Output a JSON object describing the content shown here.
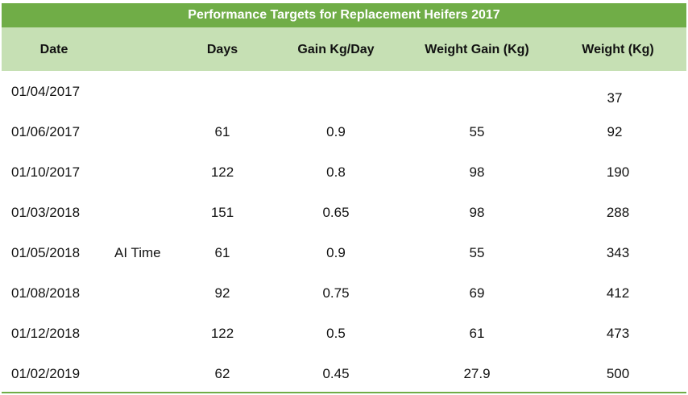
{
  "table": {
    "title": "Performance Targets for Replacement Heifers 2017",
    "headers": {
      "date": "Date",
      "days": "Days",
      "gain": "Gain Kg/Day",
      "weight_gain": "Weight Gain (Kg)",
      "weight": "Weight (Kg)"
    },
    "rows": [
      {
        "date": "01/04/2017",
        "note": "",
        "days": "",
        "gain": "",
        "weight_gain": "",
        "weight": "37"
      },
      {
        "date": "01/06/2017",
        "note": "",
        "days": "61",
        "gain": "0.9",
        "weight_gain": "55",
        "weight": "92"
      },
      {
        "date": "01/10/2017",
        "note": "",
        "days": "122",
        "gain": "0.8",
        "weight_gain": "98",
        "weight": "190"
      },
      {
        "date": "01/03/2018",
        "note": "",
        "days": "151",
        "gain": "0.65",
        "weight_gain": "98",
        "weight": "288"
      },
      {
        "date": "01/05/2018",
        "note": "AI Time",
        "days": "61",
        "gain": "0.9",
        "weight_gain": "55",
        "weight": "343"
      },
      {
        "date": "01/08/2018",
        "note": "",
        "days": "92",
        "gain": "0.75",
        "weight_gain": "69",
        "weight": "412"
      },
      {
        "date": "01/12/2018",
        "note": "",
        "days": "122",
        "gain": "0.5",
        "weight_gain": "61",
        "weight": "473"
      },
      {
        "date": "01/02/2019",
        "note": "",
        "days": "62",
        "gain": "0.45",
        "weight_gain": "27.9",
        "weight": "500"
      }
    ]
  },
  "colors": {
    "title_bg": "#70ad47",
    "header_bg": "#c6e0b4",
    "rule": "#70ad47"
  }
}
